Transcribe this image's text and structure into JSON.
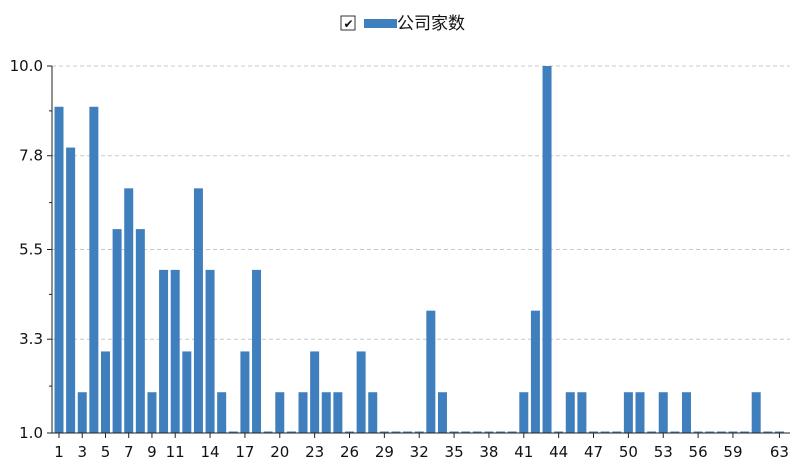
{
  "legend": {
    "label": "公司家数",
    "checked": true,
    "checkmark": "✔"
  },
  "colors": {
    "bar": "#3f7fbd",
    "grid": "#c8c8c8",
    "axis": "#222222"
  },
  "chart_data": {
    "type": "bar",
    "grid": "horizontal dashed",
    "legend_position": "top-center",
    "y_ticks": [
      "1.0",
      "3.3",
      "5.5",
      "7.8",
      "10.0"
    ],
    "ylim": [
      1,
      10
    ],
    "x_tick_labels": [
      "1",
      "3",
      "5",
      "7",
      "9",
      "11",
      "14",
      "17",
      "20",
      "23",
      "26",
      "29",
      "32",
      "35",
      "38",
      "41",
      "44",
      "47",
      "50",
      "53",
      "56",
      "59",
      "63"
    ],
    "categories": [
      1,
      2,
      3,
      4,
      5,
      6,
      7,
      8,
      9,
      10,
      11,
      12,
      13,
      14,
      15,
      16,
      17,
      18,
      19,
      20,
      21,
      22,
      23,
      24,
      25,
      26,
      27,
      28,
      29,
      30,
      31,
      32,
      33,
      34,
      35,
      36,
      37,
      38,
      39,
      40,
      41,
      42,
      43,
      44,
      45,
      46,
      47,
      48,
      49,
      50,
      51,
      52,
      53,
      54,
      55,
      56,
      57,
      58,
      59,
      60,
      61,
      62,
      63
    ],
    "series": [
      {
        "name": "公司家数",
        "values": [
          9,
          8,
          2,
          9,
          3,
          6,
          7,
          6,
          2,
          5,
          5,
          3,
          7,
          5,
          2,
          1,
          3,
          5,
          1,
          2,
          1,
          2,
          3,
          2,
          2,
          1,
          3,
          2,
          1,
          1,
          1,
          1,
          4,
          2,
          1,
          1,
          1,
          1,
          1,
          1,
          2,
          4,
          10,
          1,
          2,
          2,
          1,
          1,
          1,
          2,
          2,
          1,
          2,
          1,
          2,
          1,
          1,
          1,
          1,
          1,
          2,
          1,
          1
        ]
      }
    ]
  }
}
